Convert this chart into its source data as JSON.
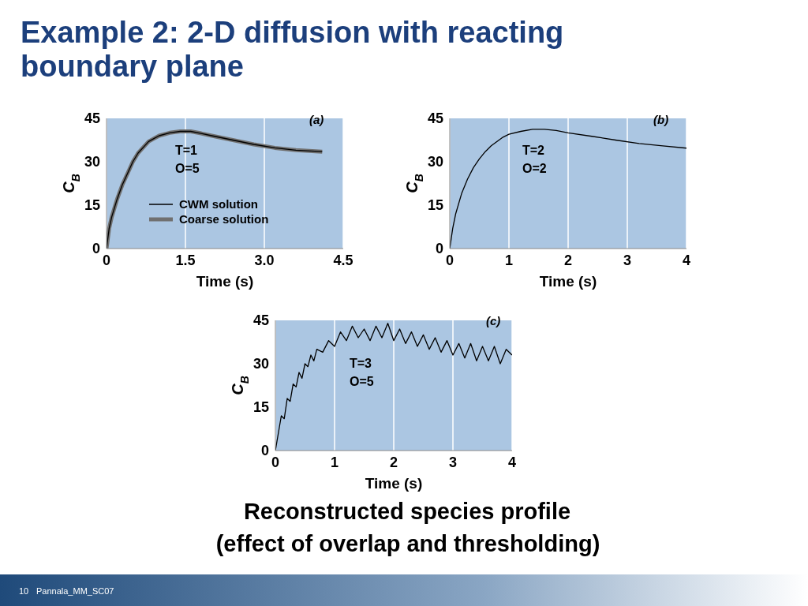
{
  "chart_data": [
    {
      "type": "line",
      "title": "Example 2: 2-D diffusion with reacting boundary plane",
      "xlabel": "Time (s)",
      "ylabel": "C$_{B}$",
      "annotations": [
        "(a)",
        "T=1",
        "O=5"
      ],
      "x": [
        0,
        0.05,
        0.1,
        0.2,
        0.3,
        0.4,
        0.5,
        0.6,
        0.7,
        0.8,
        0.9,
        1.0,
        1.2,
        1.4,
        1.6,
        1.8,
        2.0,
        2.4,
        2.8,
        3.2,
        3.6,
        4.1
      ],
      "series": [
        {
          "name": "CWM solution",
          "color": "#000000",
          "values": [
            0,
            7,
            11,
            17,
            22,
            26,
            30,
            33,
            35,
            37,
            38,
            39,
            40,
            40.5,
            40.5,
            39.8,
            39,
            37.5,
            36,
            34.8,
            34,
            33.5
          ]
        },
        {
          "name": "Coarse solution",
          "color": "#707070",
          "values": [
            0,
            7,
            11,
            17,
            22,
            26,
            30,
            33,
            35,
            37,
            38,
            39,
            40,
            40.5,
            40.5,
            39.8,
            39,
            37.5,
            36,
            34.8,
            34,
            33.5
          ]
        }
      ],
      "xlim": [
        0,
        4.5
      ],
      "xticks": [
        0,
        1.5,
        {
          "value": 3,
          "label": "3.0"
        },
        4.5
      ],
      "ylim": [
        0,
        45
      ],
      "yticks": [
        0,
        15,
        30,
        45
      ],
      "grid": "x",
      "legend": "bottom",
      "marker": "none",
      "line_style": "solid"
    },
    {
      "type": "line",
      "xlabel": "Time (s)",
      "ylabel": "C$_{B}$",
      "annotations": [
        "(b)",
        "T=2",
        "O=2"
      ],
      "x": [
        0,
        0.05,
        0.1,
        0.2,
        0.3,
        0.4,
        0.5,
        0.6,
        0.7,
        0.8,
        0.9,
        1.0,
        1.2,
        1.4,
        1.6,
        1.8,
        2.0,
        2.4,
        2.8,
        3.2,
        3.6,
        4.0
      ],
      "series": [
        {
          "color": "#000000",
          "values": [
            0,
            7,
            12,
            19,
            24,
            28,
            31,
            33.5,
            35.5,
            37,
            38.5,
            39.5,
            40.5,
            41.2,
            41.2,
            40.8,
            40,
            38.8,
            37.5,
            36.3,
            35.5,
            34.7
          ]
        }
      ],
      "xlim": [
        0,
        4
      ],
      "xticks": [
        0,
        1,
        2,
        3,
        4
      ],
      "ylim": [
        0,
        45
      ],
      "yticks": [
        0,
        15,
        30,
        45
      ],
      "grid": "x",
      "marker": "none",
      "line_style": "solid"
    },
    {
      "type": "line",
      "xlabel": "Time (s)",
      "ylabel": "C$_{B}$",
      "annotations": [
        "(c)",
        "T=3",
        "O=5",
        "Reconstructed species profile",
        "(effect of overlap and thresholding)",
        "10",
        "Pannala_MM_SC07"
      ],
      "x": [
        0,
        0.05,
        0.1,
        0.15,
        0.2,
        0.25,
        0.3,
        0.35,
        0.4,
        0.45,
        0.5,
        0.55,
        0.6,
        0.65,
        0.7,
        0.8,
        0.9,
        1.0,
        1.1,
        1.2,
        1.3,
        1.4,
        1.5,
        1.6,
        1.7,
        1.8,
        1.9,
        2.0,
        2.1,
        2.2,
        2.3,
        2.4,
        2.5,
        2.6,
        2.7,
        2.8,
        2.9,
        3.0,
        3.1,
        3.2,
        3.3,
        3.4,
        3.5,
        3.6,
        3.7,
        3.8,
        3.9,
        4.0
      ],
      "series": [
        {
          "color": "#000000",
          "values": [
            0,
            6,
            12,
            11,
            18,
            17,
            23,
            22,
            27,
            25,
            30,
            29,
            33,
            31,
            35,
            34,
            38,
            36,
            41,
            38,
            43,
            39,
            42,
            38,
            43,
            39,
            44,
            38,
            42,
            37,
            41,
            36,
            40,
            35,
            39,
            34,
            38,
            33,
            37,
            32,
            37,
            31,
            36,
            31,
            36,
            30,
            35,
            33
          ]
        }
      ],
      "xlim": [
        0,
        4
      ],
      "xticks": [
        0,
        1,
        2,
        3,
        4
      ],
      "ylim": [
        0,
        45
      ],
      "yticks": [
        0,
        15,
        30,
        45
      ],
      "grid": "x",
      "marker": "none",
      "line_style": "solid"
    }
  ]
}
